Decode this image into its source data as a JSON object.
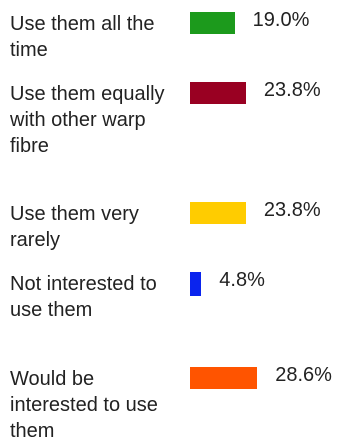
{
  "chart_data": {
    "type": "bar",
    "orientation": "horizontal",
    "categories": [
      "Use them all the time",
      "Use them equally with other warp fibre",
      "Use them very rarely",
      "Not interested to use them",
      "Would be interested to use them"
    ],
    "values": [
      19.0,
      23.8,
      23.8,
      4.8,
      28.6
    ],
    "value_labels": [
      "19.0%",
      "23.8%",
      "23.8%",
      "4.8%",
      "28.6%"
    ],
    "colors": [
      "#1c9a1c",
      "#990022",
      "#ffcc00",
      "#0a24ee",
      "#ff5400"
    ]
  }
}
